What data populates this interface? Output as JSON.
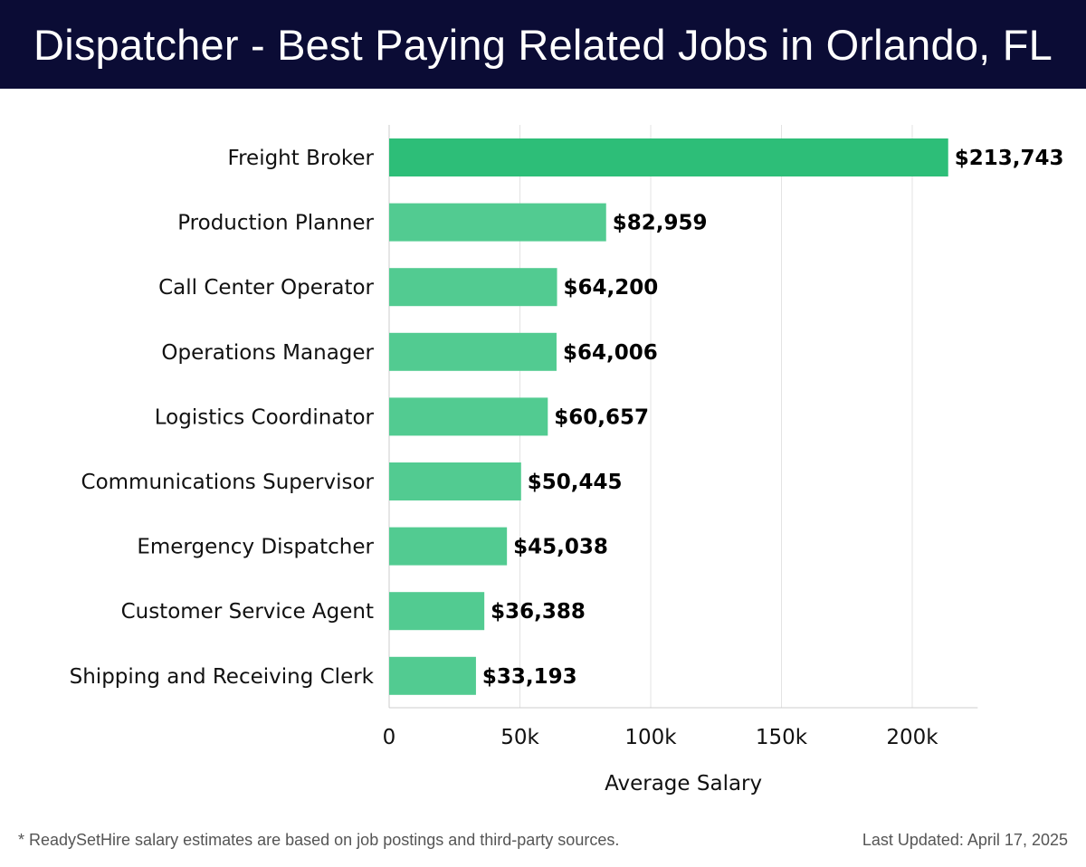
{
  "header": {
    "title": "Dispatcher - Best Paying Related Jobs in Orlando, FL"
  },
  "chart_data": {
    "type": "bar",
    "orientation": "horizontal",
    "title": "Dispatcher - Best Paying Related Jobs in Orlando, FL",
    "xlabel": "Average Salary",
    "ylabel": "",
    "xlim": [
      0,
      225000
    ],
    "xticks": [
      0,
      50000,
      100000,
      150000,
      200000
    ],
    "xtick_labels": [
      "0",
      "50k",
      "100k",
      "150k",
      "200k"
    ],
    "grid": true,
    "categories": [
      "Freight Broker",
      "Production Planner",
      "Call Center Operator",
      "Operations Manager",
      "Logistics Coordinator",
      "Communications Supervisor",
      "Emergency Dispatcher",
      "Customer Service Agent",
      "Shipping and Receiving Clerk"
    ],
    "values": [
      213743,
      82959,
      64200,
      64006,
      60657,
      50445,
      45038,
      36388,
      33193
    ],
    "value_labels": [
      "$213,743",
      "$82,959",
      "$64,200",
      "$64,006",
      "$60,657",
      "$50,445",
      "$45,038",
      "$36,388",
      "$33,193"
    ],
    "colors": {
      "highlight": "#2dbe78",
      "bar": "#52cb91",
      "grid": "#e3e3e3",
      "axis": "#cccccc"
    }
  },
  "footer": {
    "note": "* ReadySetHire salary estimates are based on job postings and third-party sources.",
    "updated": "Last Updated: April 17, 2025"
  }
}
